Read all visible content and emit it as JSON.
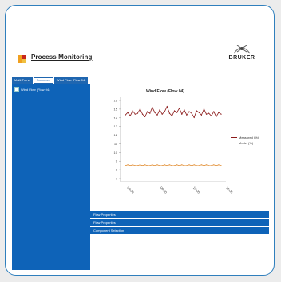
{
  "header": {
    "title": "Process Monitoring",
    "brand": "BRUKER"
  },
  "tabs": [
    {
      "label": "Multi Trend"
    },
    {
      "label": "Summary"
    },
    {
      "label": "Wind Flow (Flow 04)"
    }
  ],
  "sidebar": {
    "items": [
      {
        "label": "Wind Flow (Flow 04)"
      }
    ]
  },
  "panels": [
    {
      "label": "Flow Properties"
    },
    {
      "label": "Flow Properties"
    },
    {
      "label": "Component Selection"
    }
  ],
  "chart_data": {
    "type": "line",
    "title": "Wind Flow (Flow 04)",
    "ylim": [
      0,
      16
    ],
    "y_ticks": [
      "16",
      "15",
      "14",
      "13",
      "12",
      "11",
      "10",
      "9",
      "8",
      "7"
    ],
    "x": [
      1,
      2,
      3,
      4,
      5,
      6,
      7,
      8,
      9,
      10,
      11,
      12,
      13,
      14,
      15,
      16,
      17,
      18,
      19,
      20,
      21,
      22,
      23,
      24,
      25,
      26,
      27,
      28,
      29,
      30,
      31,
      32,
      33,
      34,
      35,
      36,
      37,
      38,
      39,
      40
    ],
    "x_ticks": [
      "08:00",
      "09:00",
      "10:00",
      "11:00"
    ],
    "series": [
      {
        "name": "Measured (%)",
        "color": "#8b1a1a",
        "values": [
          13.9,
          14.2,
          13.8,
          14.4,
          14.0,
          14.1,
          14.6,
          14.0,
          13.7,
          14.3,
          14.1,
          14.8,
          14.2,
          13.9,
          14.5,
          14.0,
          14.3,
          14.9,
          14.1,
          13.8,
          14.4,
          14.2,
          14.7,
          14.0,
          14.5,
          13.9,
          14.3,
          14.1,
          13.6,
          14.4,
          14.2,
          13.9,
          14.6,
          14.0,
          14.1,
          13.8,
          14.3,
          13.7,
          14.2,
          14.0
        ]
      },
      {
        "name": "Model (%)",
        "color": "#e08a2c",
        "values": [
          7.9,
          8.0,
          7.9,
          8.0,
          7.9,
          7.9,
          8.0,
          7.9,
          8.0,
          7.9,
          7.9,
          8.0,
          7.9,
          8.0,
          7.9,
          7.9,
          8.0,
          7.9,
          8.0,
          7.9,
          7.9,
          8.0,
          7.9,
          8.0,
          7.9,
          7.9,
          8.0,
          7.9,
          8.0,
          7.9,
          7.9,
          8.0,
          7.9,
          8.0,
          7.9,
          7.9,
          8.0,
          7.9,
          8.0,
          7.9
        ]
      }
    ],
    "legend_position": "right",
    "grid": false
  }
}
